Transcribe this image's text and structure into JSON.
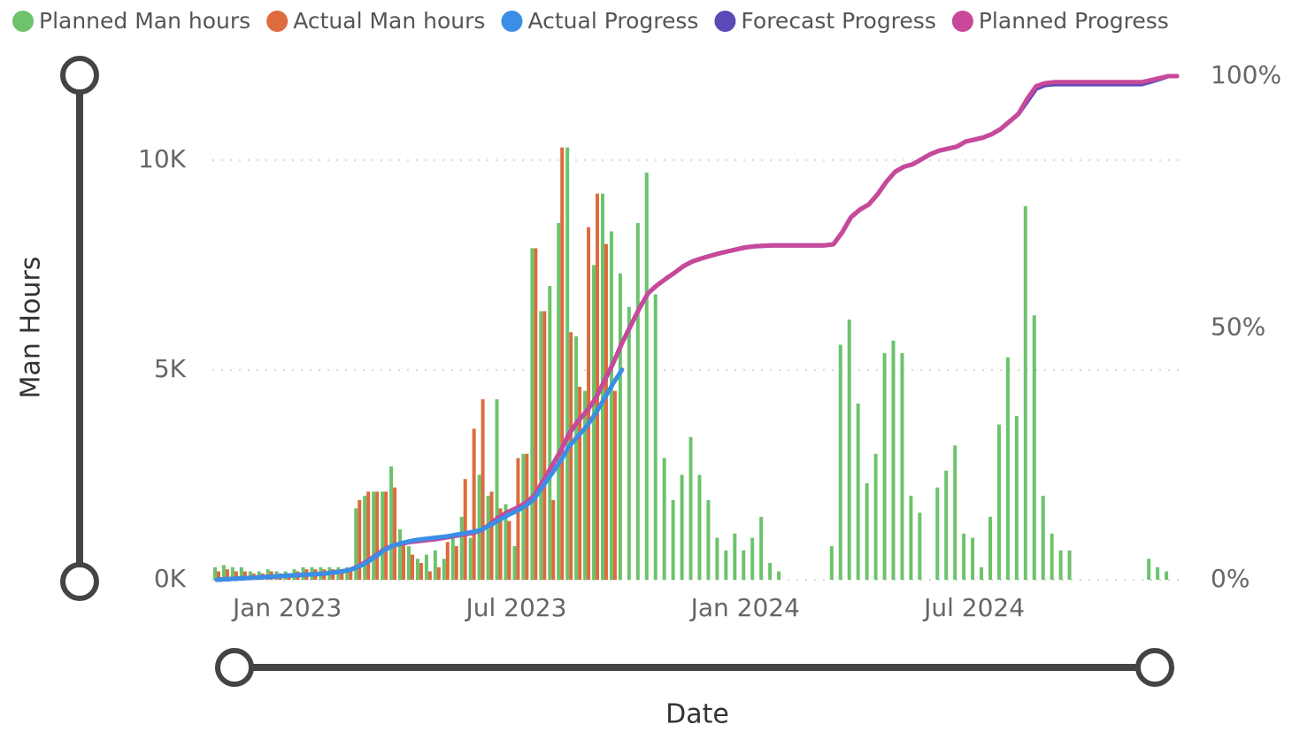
{
  "chart_data": {
    "type": "combo",
    "x_title": "Date",
    "y_title": "Man Hours",
    "categories": [
      null,
      null,
      null,
      null,
      null,
      null,
      null,
      null,
      "Jan 2023",
      null,
      null,
      null,
      null,
      null,
      null,
      null,
      null,
      null,
      null,
      null,
      null,
      null,
      null,
      null,
      null,
      null,
      null,
      null,
      null,
      null,
      null,
      null,
      null,
      null,
      "Jul 2023",
      null,
      null,
      null,
      null,
      null,
      null,
      null,
      null,
      null,
      null,
      null,
      null,
      null,
      null,
      null,
      null,
      null,
      null,
      null,
      null,
      null,
      null,
      null,
      null,
      null,
      "Jan 2024",
      null,
      null,
      null,
      null,
      null,
      null,
      null,
      null,
      null,
      null,
      null,
      null,
      null,
      null,
      null,
      null,
      null,
      null,
      null,
      null,
      null,
      null,
      null,
      null,
      null,
      "Jul 2024",
      null,
      null,
      null,
      null,
      null,
      null,
      null,
      null,
      null,
      null,
      null,
      null,
      null,
      null,
      null,
      null,
      null,
      null,
      null,
      null,
      null,
      null,
      null
    ],
    "ylim": [
      0,
      12000
    ],
    "yticks": [
      {
        "value": 0,
        "label": "0K"
      },
      {
        "value": 5000,
        "label": "5K"
      },
      {
        "value": 10000,
        "label": "10K"
      }
    ],
    "y2lim": [
      0,
      100
    ],
    "y2ticks": [
      {
        "value": 0,
        "label": "0%"
      },
      {
        "value": 50,
        "label": "50%"
      },
      {
        "value": 100,
        "label": "100%"
      }
    ],
    "grid": true,
    "series": [
      {
        "name": "Planned Man hours",
        "type": "bar",
        "color": "#6cc36c",
        "values": [
          300,
          350,
          300,
          300,
          200,
          200,
          250,
          200,
          200,
          250,
          300,
          300,
          300,
          300,
          300,
          300,
          1700,
          2000,
          2100,
          2100,
          2700,
          1200,
          800,
          500,
          600,
          700,
          500,
          1000,
          1500,
          1000,
          2500,
          2000,
          4300,
          1800,
          800,
          3000,
          7900,
          6400,
          7000,
          8500,
          10300,
          5800,
          4500,
          7500,
          9200,
          8300,
          7300,
          6500,
          8500,
          9700,
          6800,
          2900,
          1900,
          2500,
          3400,
          2500,
          1900,
          1000,
          700,
          1100,
          700,
          1000,
          1500,
          400,
          200,
          0,
          0,
          0,
          0,
          0,
          800,
          5600,
          6200,
          4200,
          2300,
          3000,
          5400,
          5700,
          5400,
          2000,
          1600,
          0,
          2200,
          2600,
          3200,
          1100,
          1000,
          300,
          1500,
          3700,
          5300,
          3900,
          8900,
          6300,
          2000,
          1100,
          700,
          700,
          0,
          0,
          0,
          0,
          0,
          0,
          0,
          0,
          500,
          300,
          200,
          0
        ]
      },
      {
        "name": "Actual Man hours",
        "type": "bar",
        "color": "#dd6b3d",
        "values": [
          200,
          250,
          200,
          200,
          150,
          150,
          200,
          150,
          150,
          200,
          250,
          250,
          250,
          250,
          250,
          250,
          1900,
          2100,
          2100,
          2100,
          2200,
          900,
          600,
          400,
          200,
          300,
          900,
          800,
          2400,
          3600,
          4300,
          2100,
          1700,
          1400,
          2900,
          3000,
          7900,
          6400,
          1900,
          10300,
          5900,
          4600,
          8400,
          9200,
          8000,
          4500,
          null,
          null,
          null,
          null,
          null,
          null,
          null,
          null,
          null,
          null,
          null,
          null,
          null,
          null,
          null,
          null,
          null,
          null,
          null,
          null,
          null,
          null,
          null,
          null,
          null,
          null,
          null,
          null,
          null,
          null,
          null,
          null,
          null,
          null,
          null,
          null,
          null,
          null,
          null,
          null,
          null,
          null,
          null,
          null,
          null,
          null,
          null,
          null,
          null,
          null,
          null,
          null,
          null,
          null,
          null,
          null,
          null,
          null,
          null,
          null,
          null,
          null,
          null,
          null
        ]
      },
      {
        "name": "Actual Progress",
        "type": "line",
        "axis": "y2",
        "color": "#3a8ee6",
        "values": [
          0,
          0.1,
          0.2,
          0.3,
          0.4,
          0.5,
          0.6,
          0.7,
          0.8,
          0.9,
          1,
          1.1,
          1.2,
          1.4,
          1.6,
          1.9,
          2.5,
          3.4,
          4.6,
          5.8,
          6.8,
          7.3,
          7.7,
          8,
          8.2,
          8.4,
          8.6,
          8.9,
          9.2,
          9.5,
          9.9,
          10.8,
          11.8,
          12.8,
          13.6,
          14.6,
          16,
          18.5,
          21,
          23.5,
          26.5,
          28.5,
          30.5,
          33,
          36,
          39,
          41.7,
          null,
          null,
          null,
          null,
          null,
          null,
          null,
          null,
          null,
          null,
          null,
          null,
          null,
          null,
          null,
          null,
          null,
          null,
          null,
          null,
          null,
          null,
          null,
          null,
          null,
          null,
          null,
          null,
          null,
          null,
          null,
          null,
          null,
          null,
          null,
          null,
          null,
          null,
          null,
          null,
          null,
          null,
          null,
          null,
          null,
          null,
          null,
          null,
          null,
          null,
          null,
          null,
          null,
          null,
          null,
          null,
          null,
          null,
          null,
          null,
          null,
          null,
          null
        ]
      },
      {
        "name": "Forecast Progress",
        "type": "line",
        "axis": "y2",
        "color": "#5a4ab8",
        "values": [
          0,
          0.1,
          0.2,
          0.3,
          0.4,
          0.5,
          0.6,
          0.7,
          0.8,
          0.9,
          1,
          1.1,
          1.2,
          1.4,
          1.6,
          1.9,
          2.6,
          3.6,
          4.8,
          6,
          6.8,
          7.2,
          7.5,
          7.7,
          7.9,
          8.1,
          8.4,
          8.7,
          9,
          9.3,
          9.8,
          11,
          12.4,
          13.4,
          14.2,
          15.2,
          16.6,
          19.5,
          22.5,
          25.5,
          29,
          31.5,
          33.5,
          36,
          39.5,
          43,
          47,
          50.5,
          54,
          57,
          58.5,
          59.8,
          61,
          62.3,
          63.2,
          63.8,
          64.3,
          64.8,
          65.2,
          65.6,
          66,
          66.2,
          66.3,
          66.4,
          66.4,
          66.4,
          66.4,
          66.4,
          66.4,
          66.4,
          66.6,
          69,
          72,
          73.5,
          74.5,
          76.5,
          79,
          81,
          82,
          82.5,
          83.5,
          84.5,
          85.2,
          85.6,
          86,
          87,
          87.4,
          87.8,
          88.5,
          89.5,
          91,
          92.5,
          95,
          97.5,
          98.2,
          98.4,
          98.4,
          98.4,
          98.4,
          98.4,
          98.4,
          98.4,
          98.4,
          98.4,
          98.4,
          98.4,
          98.9,
          99.4,
          100,
          100
        ]
      },
      {
        "name": "Planned Progress",
        "type": "line",
        "axis": "y2",
        "color": "#c8489a",
        "values": [
          0,
          0.1,
          0.2,
          0.3,
          0.4,
          0.5,
          0.6,
          0.7,
          0.8,
          0.9,
          1,
          1.1,
          1.2,
          1.4,
          1.6,
          1.9,
          2.6,
          3.6,
          4.8,
          6,
          6.8,
          7.2,
          7.5,
          7.7,
          7.9,
          8.1,
          8.4,
          8.7,
          9,
          9.3,
          9.8,
          11,
          12.4,
          13.4,
          14.2,
          15.2,
          16.6,
          19.5,
          22.5,
          25.5,
          29,
          31.5,
          33.5,
          36,
          39.5,
          43,
          47,
          50.5,
          54,
          57,
          58.5,
          59.8,
          61,
          62.3,
          63.2,
          63.8,
          64.3,
          64.8,
          65.2,
          65.6,
          66,
          66.2,
          66.3,
          66.4,
          66.4,
          66.4,
          66.4,
          66.4,
          66.4,
          66.4,
          66.6,
          69,
          72,
          73.5,
          74.5,
          76.5,
          79,
          81,
          82,
          82.5,
          83.5,
          84.5,
          85.2,
          85.6,
          86,
          87,
          87.4,
          87.8,
          88.5,
          89.5,
          91,
          92.5,
          95.5,
          98,
          98.6,
          98.8,
          98.8,
          98.8,
          98.8,
          98.8,
          98.8,
          98.8,
          98.8,
          98.8,
          98.8,
          98.8,
          99.2,
          99.6,
          100,
          100
        ]
      }
    ]
  }
}
